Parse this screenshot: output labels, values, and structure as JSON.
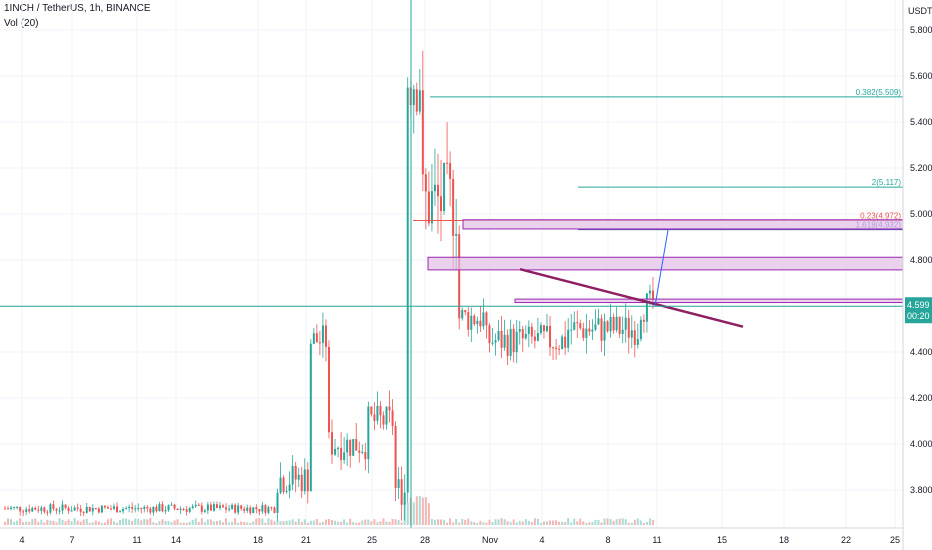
{
  "header": {
    "symbol_line": "1INCH / TetherUS, 1h, BINANCE",
    "indicator": "Vol (20)"
  },
  "price_axis": {
    "currency": "USDT",
    "last_price": "4.599",
    "countdown": "00:20"
  },
  "colors": {
    "up": "#26a69a",
    "down": "#ef5350",
    "trendline": "#8e1f63",
    "zone_fill": "#e1bee7",
    "zone_border": "#9c27b0",
    "teal_line": "#26a69a",
    "crosshair": "#26a69a"
  },
  "chart_data": {
    "type": "candlestick",
    "title": "1INCH / TetherUS, 1h, BINANCE",
    "ylim": [
      3.7,
      5.9
    ],
    "y_ticks": [
      "5.800",
      "5.600",
      "5.400",
      "5.200",
      "5.000",
      "4.800",
      "4.600",
      "4.400",
      "4.200",
      "4.000",
      "3.800"
    ],
    "y_tick_values": [
      5.8,
      5.6,
      5.4,
      5.2,
      5.0,
      4.8,
      4.6,
      4.4,
      4.2,
      4.0,
      3.8
    ],
    "x_ticks": [
      "4",
      "7",
      "11",
      "14",
      "18",
      "21",
      "25",
      "28",
      "Nov",
      "4",
      "8",
      "11",
      "15",
      "18",
      "22",
      "25"
    ],
    "series_closes": [
      {
        "from": 0,
        "to": 0.3,
        "level": 3.72
      },
      {
        "from": 0.3,
        "to": 0.335,
        "level": 3.85
      },
      {
        "from": 0.335,
        "to": 0.355,
        "level": 4.45
      },
      {
        "from": 0.355,
        "to": 0.4,
        "level": 4.0
      },
      {
        "from": 0.4,
        "to": 0.43,
        "level": 4.1
      },
      {
        "from": 0.43,
        "to": 0.445,
        "level": 3.8
      },
      {
        "from": 0.445,
        "to": 0.46,
        "level": 5.6
      },
      {
        "from": 0.46,
        "to": 0.5,
        "level": 5.05
      },
      {
        "from": 0.5,
        "to": 0.53,
        "level": 4.55
      },
      {
        "from": 0.53,
        "to": 0.62,
        "level": 4.45
      },
      {
        "from": 0.62,
        "to": 0.7,
        "level": 4.5
      },
      {
        "from": 0.7,
        "to": 0.72,
        "level": 4.6
      }
    ],
    "fib_levels": [
      {
        "label": "0.382(5.509)",
        "value": 5.509,
        "color": "#26a69a"
      },
      {
        "label": "2(5.117)",
        "value": 5.117,
        "color": "#26a69a"
      },
      {
        "label": "0.23(4.972)",
        "value": 4.972,
        "color": "#ef5350"
      },
      {
        "label": "1.618(4.932)",
        "value": 4.932,
        "color": "#3f51b5"
      }
    ],
    "zones": [
      {
        "top": 4.975,
        "bottom": 4.935
      },
      {
        "top": 4.812,
        "bottom": 4.757
      },
      {
        "top": 4.63,
        "bottom": 4.615
      }
    ],
    "trendline": {
      "from": {
        "x": "Nov 2",
        "y": 4.76
      },
      "to": {
        "x": "Nov 17",
        "y": 4.51
      }
    },
    "current_price": 4.599
  }
}
